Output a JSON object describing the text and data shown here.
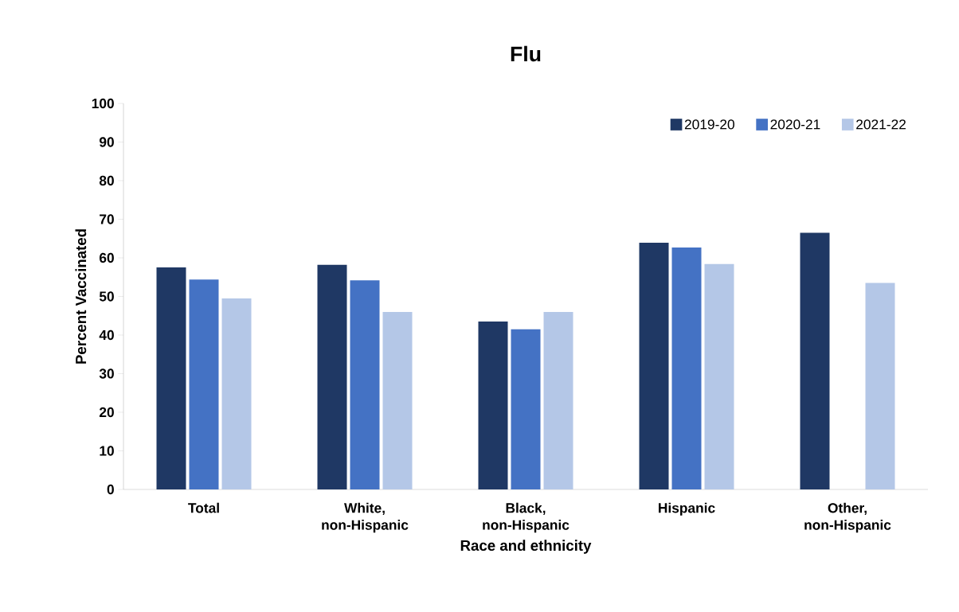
{
  "chart_data": {
    "type": "bar",
    "title": "Flu",
    "xlabel": "Race and ethnicity",
    "ylabel": "Percent Vaccinated",
    "categories": [
      "Total",
      "White, non-Hispanic",
      "Black, non-Hispanic",
      "Hispanic",
      "Other, non-Hispanic"
    ],
    "series": [
      {
        "name": "2019-20",
        "color": "#1f3864",
        "values": [
          57.5,
          58.2,
          43.5,
          63.9,
          66.5
        ]
      },
      {
        "name": "2020-21",
        "color": "#4472c4",
        "values": [
          54.4,
          54.2,
          41.5,
          62.7,
          null
        ]
      },
      {
        "name": "2021-22",
        "color": "#b4c7e7",
        "values": [
          49.5,
          46.0,
          46.0,
          58.4,
          53.5
        ]
      }
    ],
    "ylim": [
      0,
      100
    ],
    "yticks": [
      0,
      10,
      20,
      30,
      40,
      50,
      60,
      70,
      80,
      90,
      100
    ],
    "grid": false,
    "legend": "top right"
  }
}
